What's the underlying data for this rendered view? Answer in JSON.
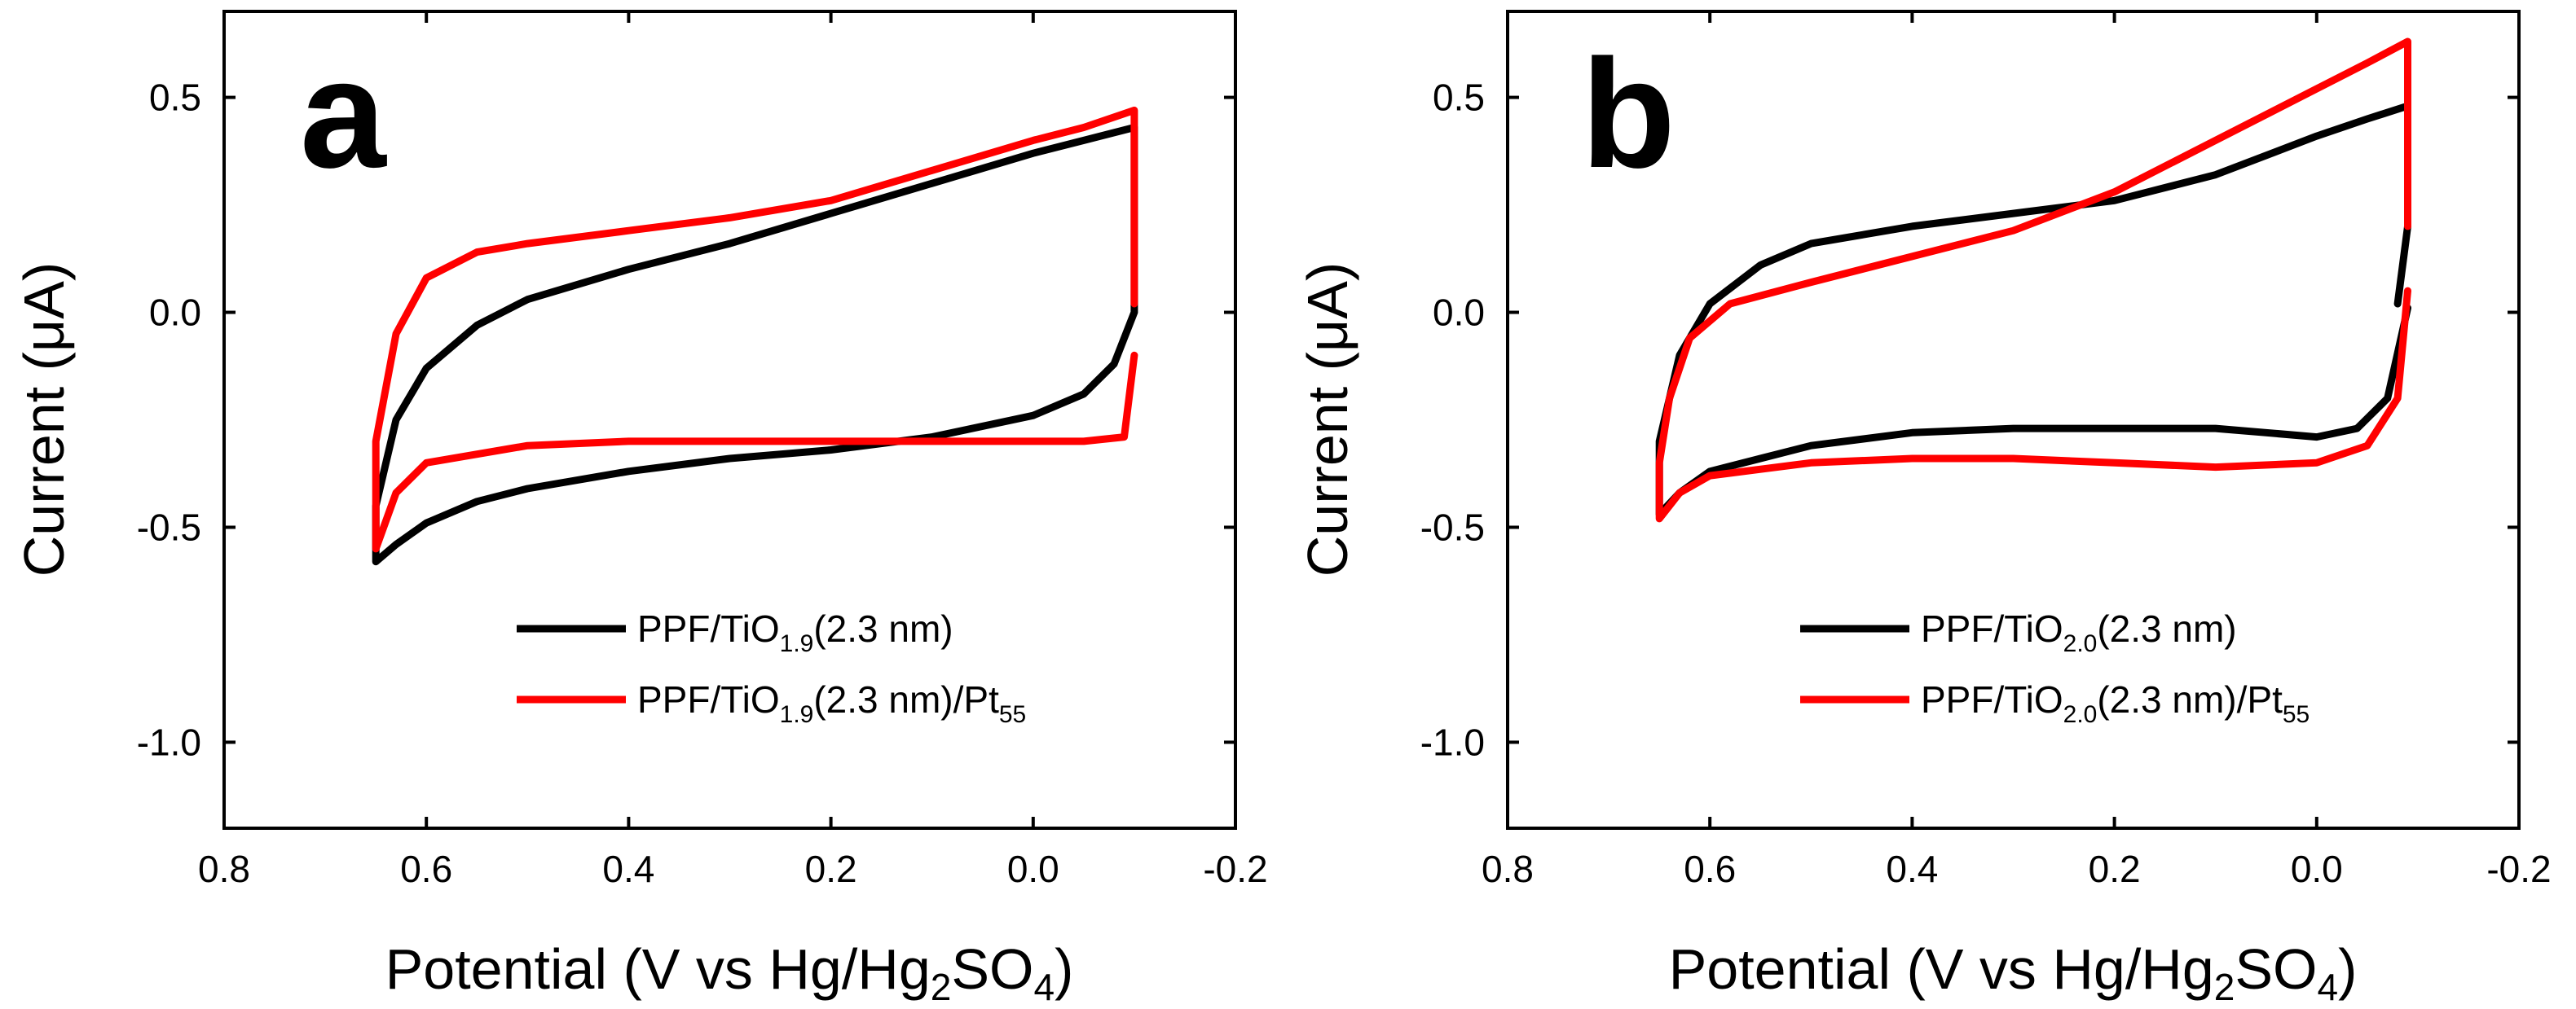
{
  "chart_data": [
    {
      "panel": "a",
      "type": "line",
      "xlabel": "Potential (V vs Hg/Hg",
      "xlabel_sub": "2",
      "xlabel_mid": "SO",
      "xlabel_sub2": "4",
      "xlabel_end": ")",
      "ylabel": "Current (μA)",
      "xlim": [
        0.8,
        -0.2
      ],
      "ylim": [
        -1.2,
        0.7
      ],
      "xticks": [
        0.8,
        0.6,
        0.4,
        0.2,
        0.0,
        -0.2
      ],
      "xtick_labels": [
        "0.8",
        "0.6",
        "0.4",
        "0.2",
        "0.0",
        "-0.2"
      ],
      "yticks": [
        0.5,
        0.0,
        -0.5,
        -1.0
      ],
      "ytick_labels": [
        "0.5",
        "0.0",
        "-0.5",
        "-1.0"
      ],
      "legend_position": "lower-right",
      "series": [
        {
          "name_pre": "PPF/TiO",
          "name_sub": "1.9",
          "name_post": "(2.3 nm)",
          "name_post_sub": "",
          "color": "#000000",
          "points": [
            [
              -0.1,
              0.0
            ],
            [
              -0.1,
              0.43
            ],
            [
              -0.05,
              0.4
            ],
            [
              0.0,
              0.37
            ],
            [
              0.1,
              0.3
            ],
            [
              0.2,
              0.23
            ],
            [
              0.3,
              0.16
            ],
            [
              0.4,
              0.1
            ],
            [
              0.5,
              0.03
            ],
            [
              0.55,
              -0.03
            ],
            [
              0.6,
              -0.13
            ],
            [
              0.63,
              -0.25
            ],
            [
              0.65,
              -0.45
            ],
            [
              0.65,
              -0.58
            ],
            [
              0.63,
              -0.54
            ],
            [
              0.6,
              -0.49
            ],
            [
              0.55,
              -0.44
            ],
            [
              0.5,
              -0.41
            ],
            [
              0.4,
              -0.37
            ],
            [
              0.3,
              -0.34
            ],
            [
              0.2,
              -0.32
            ],
            [
              0.1,
              -0.29
            ],
            [
              0.0,
              -0.24
            ],
            [
              -0.05,
              -0.19
            ],
            [
              -0.08,
              -0.12
            ],
            [
              -0.1,
              0.0
            ]
          ]
        },
        {
          "name_pre": "PPF/TiO",
          "name_sub": "1.9",
          "name_post": "(2.3 nm)/Pt",
          "name_post_sub": "55",
          "color": "#ff0000",
          "points": [
            [
              -0.1,
              0.02
            ],
            [
              -0.1,
              0.47
            ],
            [
              -0.05,
              0.43
            ],
            [
              0.0,
              0.4
            ],
            [
              0.1,
              0.33
            ],
            [
              0.2,
              0.26
            ],
            [
              0.3,
              0.22
            ],
            [
              0.4,
              0.19
            ],
            [
              0.5,
              0.16
            ],
            [
              0.55,
              0.14
            ],
            [
              0.6,
              0.08
            ],
            [
              0.63,
              -0.05
            ],
            [
              0.65,
              -0.3
            ],
            [
              0.65,
              -0.55
            ],
            [
              0.63,
              -0.42
            ],
            [
              0.6,
              -0.35
            ],
            [
              0.5,
              -0.31
            ],
            [
              0.4,
              -0.3
            ],
            [
              0.3,
              -0.3
            ],
            [
              0.2,
              -0.3
            ],
            [
              0.1,
              -0.3
            ],
            [
              0.0,
              -0.3
            ],
            [
              -0.05,
              -0.3
            ],
            [
              -0.09,
              -0.29
            ],
            [
              -0.1,
              -0.1
            ]
          ]
        }
      ]
    },
    {
      "panel": "b",
      "type": "line",
      "xlabel": "Potential (V vs Hg/Hg",
      "xlabel_sub": "2",
      "xlabel_mid": "SO",
      "xlabel_sub2": "4",
      "xlabel_end": ")",
      "ylabel": "Current (μA)",
      "xlim": [
        0.8,
        -0.2
      ],
      "ylim": [
        -1.2,
        0.7
      ],
      "xticks": [
        0.8,
        0.6,
        0.4,
        0.2,
        0.0,
        -0.2
      ],
      "xtick_labels": [
        "0.8",
        "0.6",
        "0.4",
        "0.2",
        "0.0",
        "-0.2"
      ],
      "yticks": [
        0.5,
        0.0,
        -0.5,
        -1.0
      ],
      "ytick_labels": [
        "0.5",
        "0.0",
        "-0.5",
        "-1.0"
      ],
      "legend_position": "lower-right",
      "series": [
        {
          "name_pre": "PPF/TiO",
          "name_sub": "2.0",
          "name_post": "(2.3 nm)",
          "name_post_sub": "",
          "color": "#000000",
          "points": [
            [
              -0.08,
              0.02
            ],
            [
              -0.09,
              0.2
            ],
            [
              -0.09,
              0.48
            ],
            [
              -0.05,
              0.45
            ],
            [
              0.0,
              0.41
            ],
            [
              0.1,
              0.32
            ],
            [
              0.2,
              0.26
            ],
            [
              0.3,
              0.23
            ],
            [
              0.4,
              0.2
            ],
            [
              0.5,
              0.16
            ],
            [
              0.55,
              0.11
            ],
            [
              0.6,
              0.02
            ],
            [
              0.63,
              -0.1
            ],
            [
              0.65,
              -0.3
            ],
            [
              0.65,
              -0.47
            ],
            [
              0.63,
              -0.42
            ],
            [
              0.6,
              -0.37
            ],
            [
              0.5,
              -0.31
            ],
            [
              0.4,
              -0.28
            ],
            [
              0.3,
              -0.27
            ],
            [
              0.2,
              -0.27
            ],
            [
              0.1,
              -0.27
            ],
            [
              0.05,
              -0.28
            ],
            [
              0.0,
              -0.29
            ],
            [
              -0.04,
              -0.27
            ],
            [
              -0.07,
              -0.2
            ],
            [
              -0.09,
              0.01
            ]
          ]
        },
        {
          "name_pre": "PPF/TiO",
          "name_sub": "2.0",
          "name_post": "(2.3 nm)/Pt",
          "name_post_sub": "55",
          "color": "#ff0000",
          "points": [
            [
              -0.09,
              0.2
            ],
            [
              -0.09,
              0.63
            ],
            [
              -0.05,
              0.58
            ],
            [
              0.0,
              0.52
            ],
            [
              0.1,
              0.4
            ],
            [
              0.2,
              0.28
            ],
            [
              0.3,
              0.19
            ],
            [
              0.4,
              0.13
            ],
            [
              0.5,
              0.07
            ],
            [
              0.58,
              0.02
            ],
            [
              0.62,
              -0.06
            ],
            [
              0.64,
              -0.2
            ],
            [
              0.65,
              -0.35
            ],
            [
              0.65,
              -0.48
            ],
            [
              0.63,
              -0.42
            ],
            [
              0.6,
              -0.38
            ],
            [
              0.5,
              -0.35
            ],
            [
              0.4,
              -0.34
            ],
            [
              0.3,
              -0.34
            ],
            [
              0.2,
              -0.35
            ],
            [
              0.1,
              -0.36
            ],
            [
              0.0,
              -0.35
            ],
            [
              -0.05,
              -0.31
            ],
            [
              -0.08,
              -0.2
            ],
            [
              -0.09,
              0.05
            ]
          ]
        }
      ]
    }
  ]
}
